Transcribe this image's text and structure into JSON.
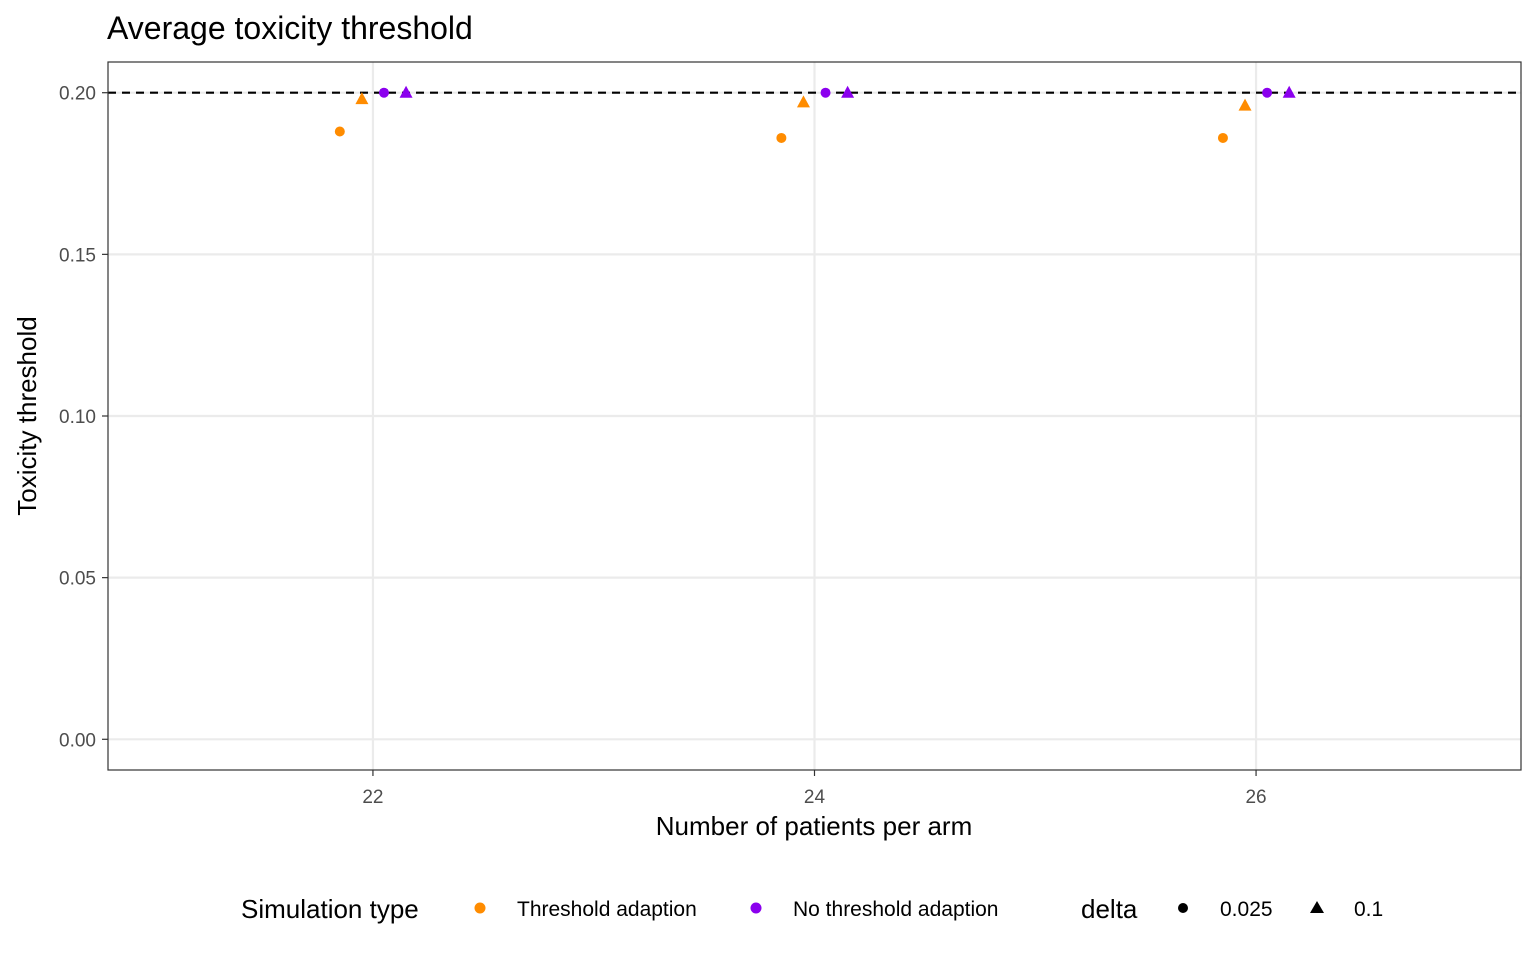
{
  "chart_data": {
    "type": "scatter",
    "title": "Average toxicity threshold",
    "xlabel": "Number of patients per arm",
    "ylabel": "Toxicity threshold",
    "xlim": [
      20.8,
      27.2
    ],
    "ylim": [
      -0.0095,
      0.2095
    ],
    "x_ticks": [
      22,
      24,
      26
    ],
    "x_tick_labels": [
      "22",
      "24",
      "26"
    ],
    "y_ticks": [
      0.0,
      0.05,
      0.1,
      0.15,
      0.2
    ],
    "y_tick_labels": [
      "0.00",
      "0.05",
      "0.10",
      "0.15",
      "0.20"
    ],
    "grid": true,
    "reference_line": {
      "y": 0.2,
      "style": "dashed",
      "color": "#000000"
    },
    "legend_position": "bottom",
    "color_legend": {
      "title": "Simulation type",
      "items": [
        {
          "label": "Threshold adaption",
          "color": "#FF8C00"
        },
        {
          "label": "No threshold adaption",
          "color": "#8B00EE"
        }
      ]
    },
    "shape_legend": {
      "title": "delta",
      "items": [
        {
          "label": "0.025",
          "shape": "circle"
        },
        {
          "label": "0.1",
          "shape": "triangle"
        }
      ]
    },
    "points": [
      {
        "x": 21.85,
        "y": 0.188,
        "sim": "Threshold adaption",
        "delta": "0.025"
      },
      {
        "x": 21.95,
        "y": 0.198,
        "sim": "Threshold adaption",
        "delta": "0.1"
      },
      {
        "x": 22.05,
        "y": 0.2,
        "sim": "No threshold adaption",
        "delta": "0.025"
      },
      {
        "x": 22.15,
        "y": 0.2,
        "sim": "No threshold adaption",
        "delta": "0.1"
      },
      {
        "x": 23.85,
        "y": 0.186,
        "sim": "Threshold adaption",
        "delta": "0.025"
      },
      {
        "x": 23.95,
        "y": 0.197,
        "sim": "Threshold adaption",
        "delta": "0.1"
      },
      {
        "x": 24.05,
        "y": 0.2,
        "sim": "No threshold adaption",
        "delta": "0.025"
      },
      {
        "x": 24.15,
        "y": 0.2,
        "sim": "No threshold adaption",
        "delta": "0.1"
      },
      {
        "x": 25.85,
        "y": 0.186,
        "sim": "Threshold adaption",
        "delta": "0.025"
      },
      {
        "x": 25.95,
        "y": 0.196,
        "sim": "Threshold adaption",
        "delta": "0.1"
      },
      {
        "x": 26.05,
        "y": 0.2,
        "sim": "No threshold adaption",
        "delta": "0.025"
      },
      {
        "x": 26.15,
        "y": 0.2,
        "sim": "No threshold adaption",
        "delta": "0.1"
      }
    ]
  }
}
